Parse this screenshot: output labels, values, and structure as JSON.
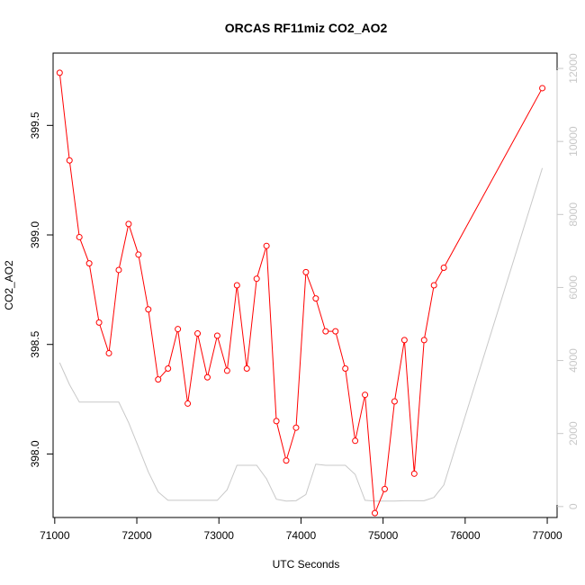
{
  "chart_data": {
    "type": "line",
    "title": "ORCAS RF11miz CO2_AO2",
    "xlabel": "UTC Seconds",
    "ylabel": "CO2_AO2",
    "xlim": [
      70980,
      77120
    ],
    "ylim": [
      397.71,
      399.83
    ],
    "y2lim": [
      -300,
      12420
    ],
    "x_ticks": [
      71000,
      72000,
      73000,
      74000,
      75000,
      76000,
      77000
    ],
    "x_tick_labels": [
      "71000",
      "72000",
      "73000",
      "74000",
      "75000",
      "76000",
      "77000"
    ],
    "y_ticks": [
      398.0,
      398.5,
      399.0,
      399.5
    ],
    "y_tick_labels": [
      "398.0",
      "398.5",
      "399.0",
      "399.5"
    ],
    "y2_ticks": [
      0,
      2000,
      4000,
      6000,
      8000,
      10000,
      12000
    ],
    "y2_tick_labels": [
      "0",
      "2000",
      "4000",
      "6000",
      "8000",
      "10000",
      "12000"
    ],
    "colors": {
      "co2": "#ff0000",
      "altitude": "#c8c8c8",
      "axis": "#000000"
    },
    "series": [
      {
        "axis": "left",
        "style": "line+points",
        "x": [
          71060,
          71180,
          71300,
          71420,
          71540,
          71660,
          71780,
          71900,
          72020,
          72140,
          72260,
          72380,
          72500,
          72620,
          72740,
          72860,
          72980,
          73100,
          73220,
          73340,
          73460,
          73580,
          73700,
          73820,
          73940,
          74060,
          74180,
          74300,
          74420,
          74540,
          74660,
          74780,
          74900,
          75020,
          75140,
          75260,
          75380,
          75500,
          75620,
          75740,
          76940
        ],
        "y": [
          399.74,
          399.34,
          398.99,
          398.87,
          398.6,
          398.46,
          398.84,
          399.05,
          398.91,
          398.66,
          398.34,
          398.39,
          398.57,
          398.23,
          398.55,
          398.35,
          398.54,
          398.38,
          398.77,
          398.39,
          398.8,
          398.95,
          398.15,
          397.97,
          398.12,
          398.83,
          398.71,
          398.56,
          398.56,
          398.39,
          398.06,
          398.27,
          397.73,
          397.84,
          398.24,
          398.52,
          397.91,
          398.52,
          398.77,
          398.85,
          399.67
        ]
      },
      {
        "axis": "right",
        "style": "line",
        "x": [
          71060,
          71180,
          71300,
          71420,
          71540,
          71660,
          71780,
          71900,
          72020,
          72140,
          72260,
          72380,
          72500,
          72620,
          72740,
          72860,
          72980,
          73100,
          73220,
          73340,
          73460,
          73580,
          73700,
          73820,
          73940,
          74060,
          74180,
          74300,
          74420,
          74540,
          74660,
          74780,
          74900,
          75020,
          75140,
          75260,
          75380,
          75500,
          75620,
          75740,
          76940
        ],
        "y": [
          3940,
          3340,
          2860,
          2860,
          2860,
          2860,
          2860,
          2300,
          1630,
          950,
          400,
          170,
          170,
          170,
          170,
          170,
          170,
          460,
          1130,
          1130,
          1130,
          760,
          200,
          150,
          160,
          330,
          1160,
          1130,
          1130,
          1130,
          880,
          170,
          150,
          150,
          150,
          160,
          160,
          160,
          250,
          590,
          9270
        ]
      }
    ]
  }
}
